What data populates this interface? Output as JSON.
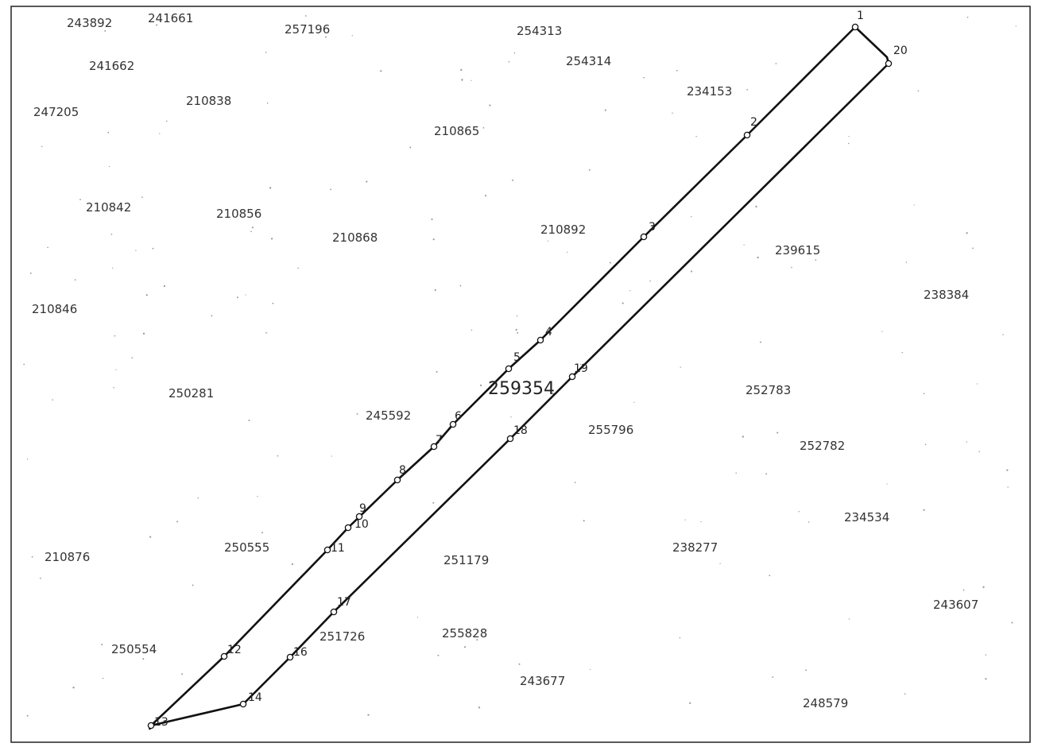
{
  "main_parcel": {
    "id": "259354"
  },
  "parcels": [
    "243892",
    "241661",
    "257196",
    "254313",
    "254314",
    "241662",
    "234153",
    "247205",
    "210838",
    "210865",
    "210842",
    "210856",
    "210868",
    "210892",
    "239615",
    "238384",
    "210846",
    "252783",
    "250281",
    "245592",
    "255796",
    "252782",
    "234534",
    "210876",
    "250555",
    "251179",
    "238277",
    "243607",
    "250554",
    "251726",
    "255828",
    "243677",
    "248579"
  ],
  "vertices": [
    "1",
    "2",
    "3",
    "4",
    "5",
    "6",
    "7",
    "8",
    "9",
    "10",
    "11",
    "12",
    "13",
    "14",
    "16",
    "17",
    "18",
    "19",
    "20"
  ]
}
